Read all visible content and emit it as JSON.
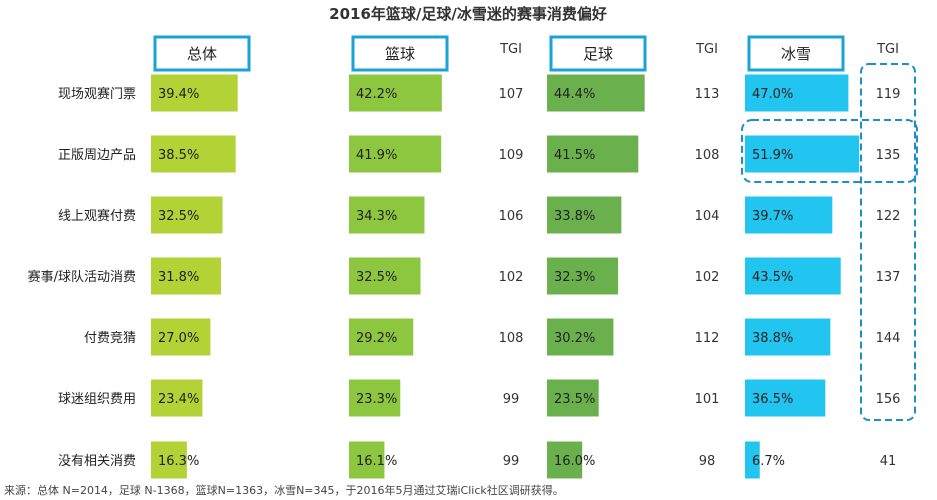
{
  "chart_data": {
    "type": "bar",
    "title": "2016年篮球/足球/冰雪迷的赛事消费偏好",
    "categories": [
      "现场观赛门票",
      "正版周边产品",
      "线上观赛付费",
      "赛事/球队活动消费",
      "付费竞猜",
      "球迷组织费用",
      "没有相关消费"
    ],
    "tgi_header": "TGI",
    "series": [
      {
        "name": "总体",
        "color": "#b2d235",
        "values": [
          39.4,
          38.5,
          32.5,
          31.8,
          27.0,
          23.4,
          16.3
        ],
        "labels": [
          "39.4%",
          "38.5%",
          "32.5%",
          "31.8%",
          "27.0%",
          "23.4%",
          "16.3%"
        ]
      },
      {
        "name": "篮球",
        "color": "#8dc63f",
        "values": [
          42.2,
          41.9,
          34.3,
          32.5,
          29.2,
          23.3,
          16.1
        ],
        "labels": [
          "42.2%",
          "41.9%",
          "34.3%",
          "32.5%",
          "29.2%",
          "23.3%",
          "16.1%"
        ],
        "tgi": [
          "107",
          "109",
          "106",
          "102",
          "108",
          "99",
          "99"
        ]
      },
      {
        "name": "足球",
        "color": "#6ab04c",
        "values": [
          44.4,
          41.5,
          33.8,
          32.3,
          30.2,
          23.5,
          16.0
        ],
        "labels": [
          "44.4%",
          "41.5%",
          "33.8%",
          "32.3%",
          "30.2%",
          "23.5%",
          "16.0%"
        ],
        "tgi": [
          "113",
          "108",
          "104",
          "102",
          "112",
          "101",
          "98"
        ]
      },
      {
        "name": "冰雪",
        "color": "#22c4f0",
        "values": [
          47.0,
          51.9,
          39.7,
          43.5,
          38.8,
          36.5,
          6.7
        ],
        "labels": [
          "47.0%",
          "51.9%",
          "39.7%",
          "43.5%",
          "38.8%",
          "36.5%",
          "6.7%"
        ],
        "tgi": [
          "119",
          "135",
          "122",
          "137",
          "144",
          "156",
          "41"
        ]
      }
    ],
    "header_border_color": "#1aa3d9",
    "highlight_color": "#1a8fc8"
  },
  "source_note": "来源：总体 N=2014，足球 N-1368，篮球N=1363，冰雪N=345，于2016年5月通过艾瑞iClick社区调研获得。"
}
